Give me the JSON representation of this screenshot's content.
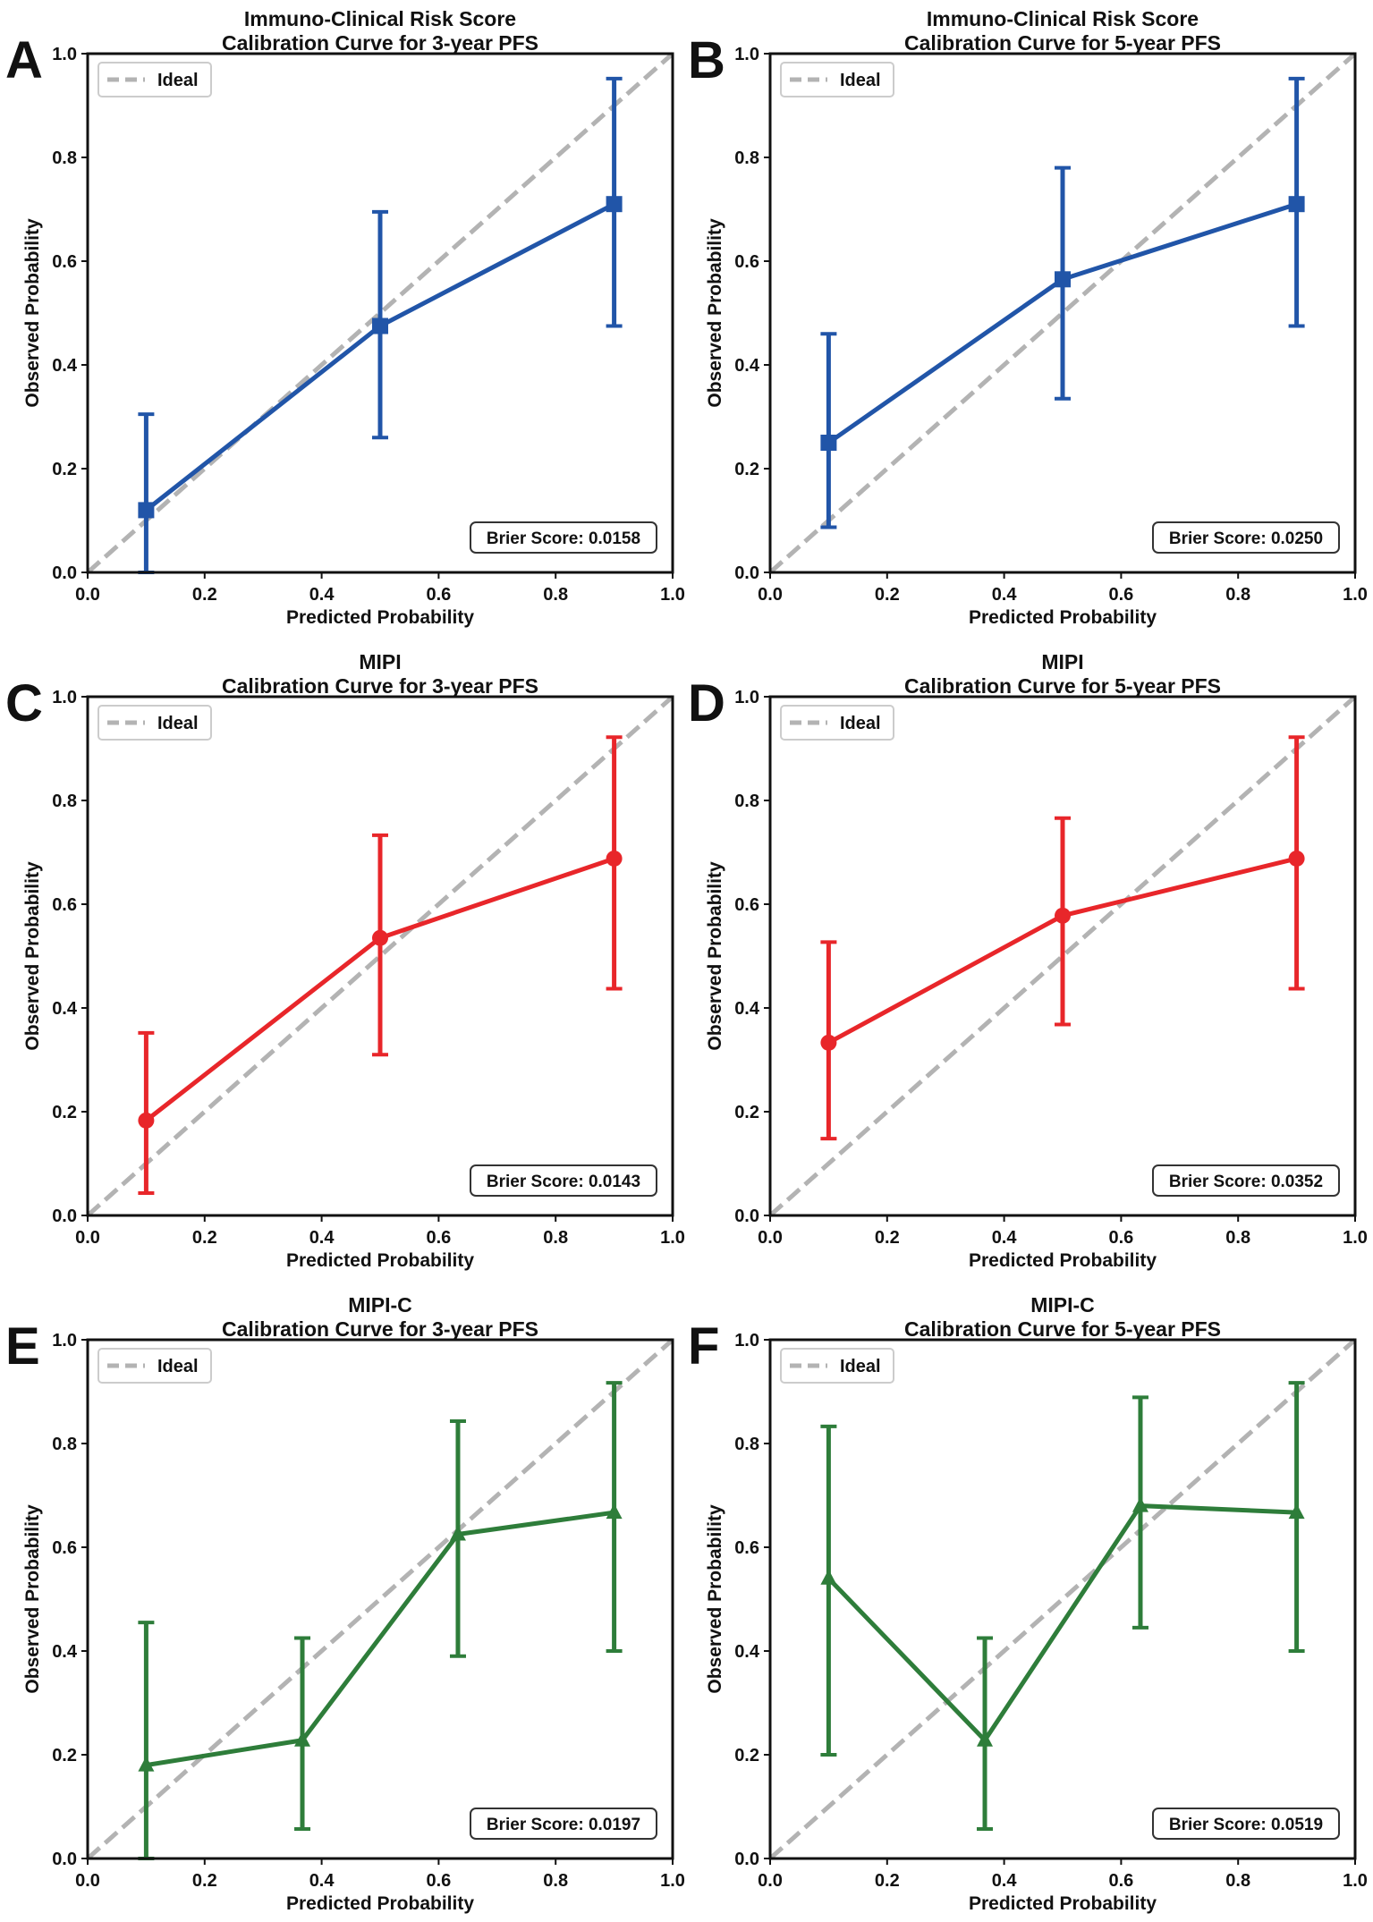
{
  "colors": {
    "blue": "#2155a8",
    "red": "#e8262a",
    "green": "#2e7d3a",
    "ideal": "#b3b3b3"
  },
  "chart_data": [
    {
      "type": "line",
      "panel_label": "A",
      "title": "Immuno-Clinical Risk Score\nCalibration Curve for 3-year PFS",
      "xlabel": "Predicted Probability",
      "ylabel": "Observed Probability",
      "xlim": [
        0,
        1
      ],
      "ylim": [
        0,
        1
      ],
      "ticks": [
        "0.0",
        "0.2",
        "0.4",
        "0.6",
        "0.8",
        "1.0"
      ],
      "legend": "Ideal",
      "legend_position": "top-left",
      "annotation": "Brier Score: 0.0158",
      "color": "blue",
      "marker": "square",
      "x": [
        0.1,
        0.5,
        0.9
      ],
      "y": [
        0.12,
        0.475,
        0.71
      ],
      "err_low": [
        0.0,
        0.26,
        0.475
      ],
      "err_high": [
        0.305,
        0.695,
        0.952
      ]
    },
    {
      "type": "line",
      "panel_label": "B",
      "title": "Immuno-Clinical Risk Score\nCalibration Curve for 5-year PFS",
      "xlabel": "Predicted Probability",
      "ylabel": "Observed Probability",
      "xlim": [
        0,
        1
      ],
      "ylim": [
        0,
        1
      ],
      "ticks": [
        "0.0",
        "0.2",
        "0.4",
        "0.6",
        "0.8",
        "1.0"
      ],
      "legend": "Ideal",
      "legend_position": "top-left",
      "annotation": "Brier Score: 0.0250",
      "color": "blue",
      "marker": "square",
      "x": [
        0.1,
        0.5,
        0.9
      ],
      "y": [
        0.25,
        0.565,
        0.71
      ],
      "err_low": [
        0.087,
        0.335,
        0.475
      ],
      "err_high": [
        0.46,
        0.78,
        0.952
      ]
    },
    {
      "type": "line",
      "panel_label": "C",
      "title": "MIPI\nCalibration Curve for 3-year PFS",
      "xlabel": "Predicted Probability",
      "ylabel": "Observed Probability",
      "xlim": [
        0,
        1
      ],
      "ylim": [
        0,
        1
      ],
      "ticks": [
        "0.0",
        "0.2",
        "0.4",
        "0.6",
        "0.8",
        "1.0"
      ],
      "legend": "Ideal",
      "legend_position": "top-left",
      "annotation": "Brier Score: 0.0143",
      "color": "red",
      "marker": "circle",
      "x": [
        0.1,
        0.5,
        0.9
      ],
      "y": [
        0.183,
        0.535,
        0.688
      ],
      "err_low": [
        0.043,
        0.31,
        0.437
      ],
      "err_high": [
        0.352,
        0.733,
        0.922
      ]
    },
    {
      "type": "line",
      "panel_label": "D",
      "title": "MIPI\nCalibration Curve for 5-year PFS",
      "xlabel": "Predicted Probability",
      "ylabel": "Observed Probability",
      "xlim": [
        0,
        1
      ],
      "ylim": [
        0,
        1
      ],
      "ticks": [
        "0.0",
        "0.2",
        "0.4",
        "0.6",
        "0.8",
        "1.0"
      ],
      "legend": "Ideal",
      "legend_position": "top-left",
      "annotation": "Brier Score: 0.0352",
      "color": "red",
      "marker": "circle",
      "x": [
        0.1,
        0.5,
        0.9
      ],
      "y": [
        0.333,
        0.578,
        0.688
      ],
      "err_low": [
        0.148,
        0.368,
        0.437
      ],
      "err_high": [
        0.527,
        0.766,
        0.922
      ]
    },
    {
      "type": "line",
      "panel_label": "E",
      "title": "MIPI-C\nCalibration Curve for 3-year PFS",
      "xlabel": "Predicted Probability",
      "ylabel": "Observed Probability",
      "xlim": [
        0,
        1
      ],
      "ylim": [
        0,
        1
      ],
      "ticks": [
        "0.0",
        "0.2",
        "0.4",
        "0.6",
        "0.8",
        "1.0"
      ],
      "legend": "Ideal",
      "legend_position": "top-left",
      "annotation": "Brier Score: 0.0197",
      "color": "green",
      "marker": "triangle",
      "x": [
        0.1,
        0.367,
        0.633,
        0.9
      ],
      "y": [
        0.18,
        0.228,
        0.625,
        0.667
      ],
      "err_low": [
        0.0,
        0.057,
        0.39,
        0.4
      ],
      "err_high": [
        0.455,
        0.425,
        0.843,
        0.917
      ]
    },
    {
      "type": "line",
      "panel_label": "F",
      "title": "MIPI-C\nCalibration Curve for 5-year PFS",
      "xlabel": "Predicted Probability",
      "ylabel": "Observed Probability",
      "xlim": [
        0,
        1
      ],
      "ylim": [
        0,
        1
      ],
      "ticks": [
        "0.0",
        "0.2",
        "0.4",
        "0.6",
        "0.8",
        "1.0"
      ],
      "legend": "Ideal",
      "legend_position": "top-left",
      "annotation": "Brier Score: 0.0519",
      "color": "green",
      "marker": "triangle",
      "x": [
        0.1,
        0.367,
        0.633,
        0.9
      ],
      "y": [
        0.54,
        0.228,
        0.68,
        0.667
      ],
      "err_low": [
        0.2,
        0.057,
        0.445,
        0.4
      ],
      "err_high": [
        0.833,
        0.425,
        0.889,
        0.917
      ]
    }
  ]
}
